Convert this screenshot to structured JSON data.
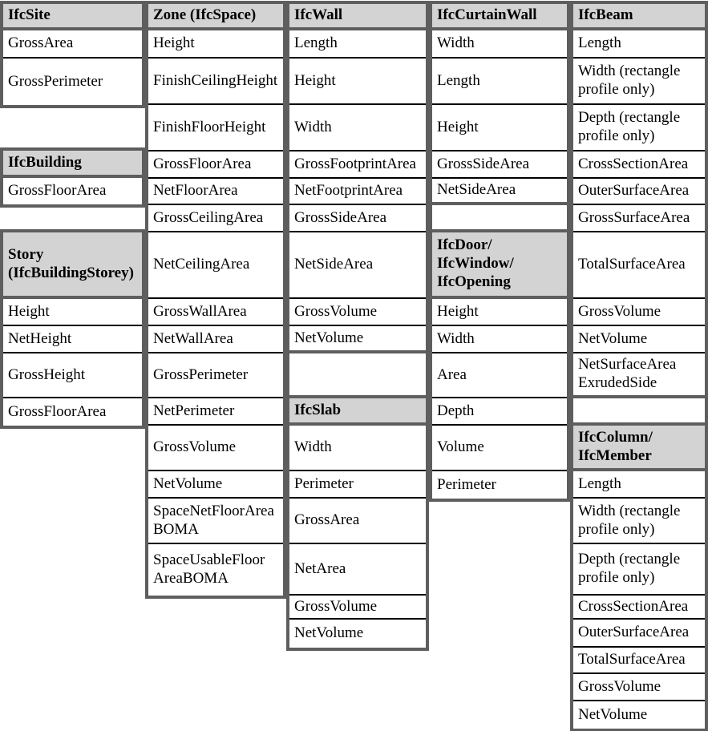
{
  "table": {
    "colors": {
      "header_bg": "#d3d3d3",
      "block_border": "#5e5e5e",
      "row_line": "#000000"
    },
    "columns": [
      {
        "id": "site-building-story",
        "connected": false,
        "sections": [
          {
            "header": "IfcSite",
            "items": [
              "GrossArea",
              "GrossPerimeter"
            ]
          },
          {
            "header": "IfcBuilding",
            "items": [
              "GrossFloorArea"
            ]
          },
          {
            "header": "Story\n(IfcBuildingStorey)",
            "items": [
              "Height",
              "NetHeight",
              "GrossHeight",
              "GrossFloorArea"
            ]
          }
        ]
      },
      {
        "id": "zone-space",
        "connected": true,
        "sections": [
          {
            "header": "Zone (IfcSpace)",
            "items": [
              "Height",
              "FinishCeilingHeight",
              "FinishFloorHeight",
              "GrossFloorArea",
              "NetFloorArea",
              "GrossCeilingArea",
              "NetCeilingArea",
              "GrossWallArea",
              "NetWallArea",
              "GrossPerimeter",
              "NetPerimeter",
              "GrossVolume",
              "NetVolume",
              "SpaceNetFloorArea\nBOMA",
              "SpaceUsableFloor\nAreaBOMA"
            ]
          }
        ]
      },
      {
        "id": "wall-slab",
        "connected": true,
        "sections": [
          {
            "header": "IfcWall",
            "items": [
              "Length",
              "Height",
              "Width",
              "GrossFootprintArea",
              "NetFootprintArea",
              "GrossSideArea",
              "NetSideArea",
              "GrossVolume",
              "NetVolume"
            ]
          },
          {
            "header": "IfcSlab",
            "items": [
              "Width",
              "Perimeter",
              "GrossArea",
              "NetArea",
              "GrossVolume",
              "NetVolume"
            ]
          }
        ]
      },
      {
        "id": "curtainwall-openings",
        "connected": true,
        "sections": [
          {
            "header": "IfcCurtainWall",
            "items": [
              "Width",
              "Length",
              "Height",
              "GrossSideArea",
              "NetSideArea"
            ]
          },
          {
            "header": "IfcDoor/\nIfcWindow/\nIfcOpening",
            "items": [
              "Height",
              "Width",
              "Area",
              "Depth",
              "Volume",
              "Perimeter"
            ]
          }
        ]
      },
      {
        "id": "beam-column-member",
        "connected": true,
        "sections": [
          {
            "header": "IfcBeam",
            "items": [
              "Length",
              "Width (rectangle\nprofile only)",
              "Depth (rectangle\nprofile only)",
              "CrossSectionArea",
              "OuterSurfaceArea",
              "GrossSurfaceArea",
              "TotalSurfaceArea",
              "GrossVolume",
              "NetVolume",
              "NetSurfaceArea\nExrudedSide"
            ]
          },
          {
            "header": "IfcColumn/\nIfcMember",
            "items": [
              "Length",
              "Width (rectangle\nprofile only)",
              "Depth (rectangle\nprofile only)",
              "CrossSectionArea",
              "OuterSurfaceArea",
              "TotalSurfaceArea",
              "GrossVolume",
              "NetVolume"
            ]
          }
        ]
      }
    ]
  }
}
